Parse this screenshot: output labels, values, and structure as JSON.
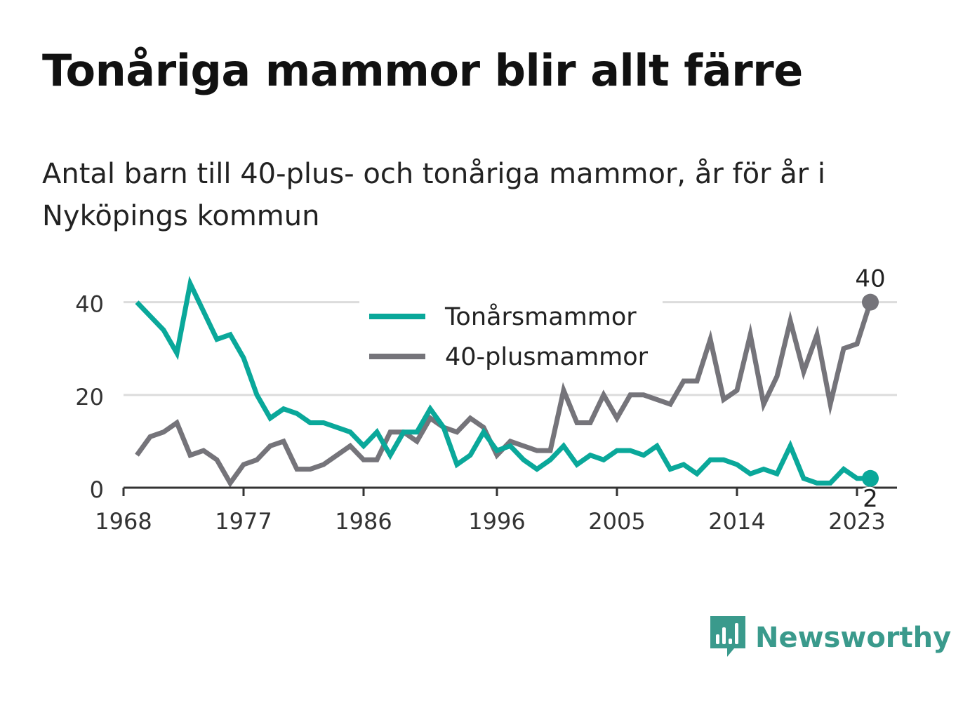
{
  "title": "Tonåriga mammor blir allt färre",
  "subtitle": "Antal barn till 40-plus- och tonåriga mammor, år för år i Nyköpings kommun",
  "brand": {
    "name": "Newsworthy",
    "icon": "newsworthy-logo-icon",
    "color": "#3a9a8c"
  },
  "chart_data": {
    "type": "line",
    "xlim": [
      1968,
      2026
    ],
    "ylim": [
      0,
      46
    ],
    "x_ticks": [
      "1968",
      "1977",
      "1986",
      "1996",
      "2005",
      "2014",
      "2023"
    ],
    "y_ticks": [
      "0",
      "20",
      "40"
    ],
    "grid": true,
    "legend": "top-center",
    "x": [
      1969,
      1970,
      1971,
      1972,
      1973,
      1974,
      1975,
      1976,
      1977,
      1978,
      1979,
      1980,
      1981,
      1982,
      1983,
      1984,
      1985,
      1986,
      1987,
      1988,
      1989,
      1990,
      1991,
      1992,
      1993,
      1994,
      1995,
      1996,
      1997,
      1998,
      1999,
      2000,
      2001,
      2002,
      2003,
      2004,
      2005,
      2006,
      2007,
      2008,
      2009,
      2010,
      2011,
      2012,
      2013,
      2014,
      2015,
      2016,
      2017,
      2018,
      2019,
      2020,
      2021,
      2022,
      2023,
      2024
    ],
    "series": [
      {
        "name": "Tonårsmammor",
        "color": "#0aa89a",
        "values": [
          40,
          37,
          34,
          29,
          44,
          38,
          32,
          33,
          28,
          20,
          15,
          17,
          16,
          14,
          14,
          13,
          12,
          9,
          12,
          7,
          12,
          12,
          17,
          13,
          5,
          7,
          12,
          8,
          9,
          6,
          4,
          6,
          9,
          5,
          7,
          6,
          8,
          8,
          7,
          9,
          4,
          5,
          3,
          6,
          6,
          5,
          3,
          4,
          3,
          9,
          2,
          1,
          1,
          4,
          2,
          2
        ]
      },
      {
        "name": "40-plusmammor",
        "color": "#75747a",
        "values": [
          7,
          11,
          12,
          14,
          7,
          8,
          6,
          1,
          5,
          6,
          9,
          10,
          4,
          4,
          5,
          7,
          9,
          6,
          6,
          12,
          12,
          10,
          15,
          13,
          12,
          15,
          13,
          7,
          10,
          9,
          8,
          8,
          21,
          14,
          14,
          20,
          15,
          20,
          20,
          19,
          18,
          23,
          23,
          32,
          19,
          21,
          33,
          18,
          24,
          36,
          25,
          33,
          18,
          30,
          31,
          40
        ]
      }
    ],
    "end_labels": [
      "2",
      "40"
    ]
  }
}
